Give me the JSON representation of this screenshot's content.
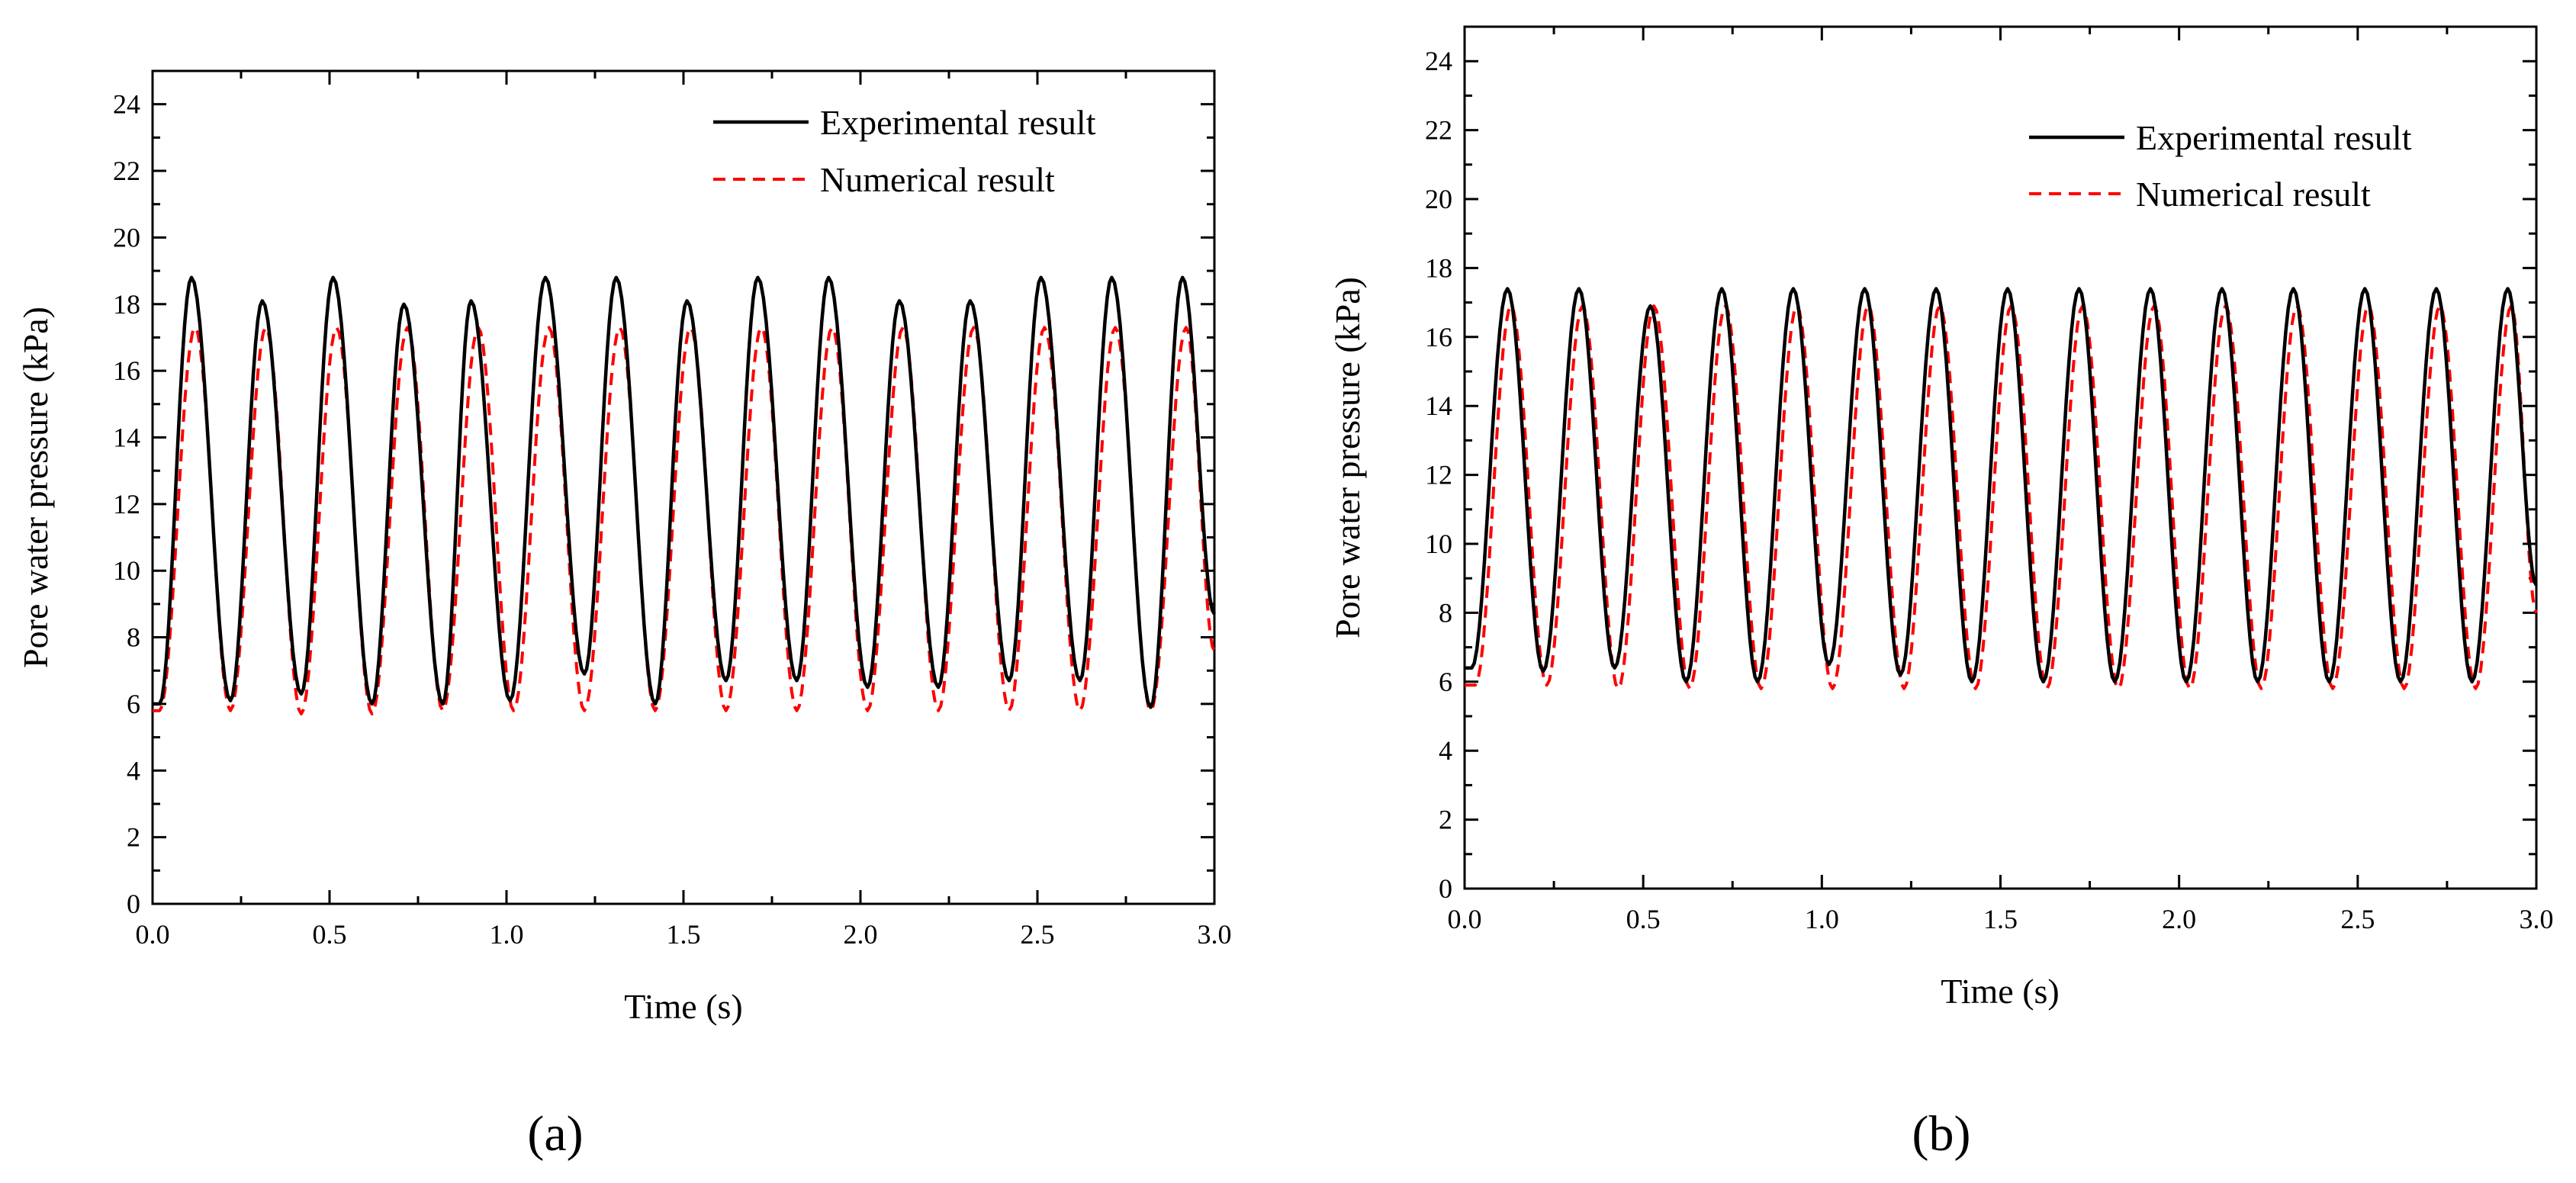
{
  "colors": {
    "experimental": "#000000",
    "numerical": "#ff0000"
  },
  "chart_data": [
    {
      "type": "line",
      "panel": "a",
      "panel_label": "(a)",
      "xlabel": "Time (s)",
      "ylabel": "Pore water pressure (kPa)",
      "xlim": [
        0.0,
        3.0
      ],
      "ylim": [
        0,
        25
      ],
      "xticks": [
        "0.0",
        "0.5",
        "1.0",
        "1.5",
        "2.0",
        "2.5",
        "3.0"
      ],
      "yticks": [
        "0",
        "2",
        "4",
        "6",
        "8",
        "10",
        "12",
        "14",
        "16",
        "18",
        "20",
        "22",
        "24"
      ],
      "legend_position": "top-right",
      "legend": [
        "Experimental result",
        "Numerical result"
      ],
      "series": [
        {
          "name": "Experimental result",
          "style": "solid",
          "peak_times": [
            0.11,
            0.31,
            0.51,
            0.71,
            0.9,
            1.11,
            1.31,
            1.51,
            1.71,
            1.91,
            2.11,
            2.31,
            2.51,
            2.71,
            2.91
          ],
          "peak_values": [
            18.8,
            18.1,
            18.8,
            18.0,
            18.1,
            18.8,
            18.8,
            18.1,
            18.8,
            18.8,
            18.1,
            18.1,
            18.8,
            18.8,
            18.8
          ],
          "trough_times": [
            0.02,
            0.22,
            0.42,
            0.62,
            0.82,
            1.01,
            1.22,
            1.42,
            1.62,
            1.82,
            2.02,
            2.22,
            2.42,
            2.62,
            2.82
          ],
          "trough_values": [
            6.0,
            6.1,
            6.3,
            6.0,
            6.0,
            6.1,
            6.9,
            6.0,
            6.7,
            6.7,
            6.5,
            6.5,
            6.7,
            6.7,
            5.9
          ],
          "end_value": 8.7
        },
        {
          "name": "Numerical result",
          "style": "dashed",
          "peak_times": [
            0.12,
            0.32,
            0.52,
            0.72,
            0.92,
            1.12,
            1.32,
            1.52,
            1.72,
            1.92,
            2.12,
            2.32,
            2.52,
            2.72,
            2.92
          ],
          "peak_values": [
            17.3,
            17.3,
            17.3,
            17.3,
            17.3,
            17.3,
            17.3,
            17.3,
            17.3,
            17.3,
            17.3,
            17.3,
            17.3,
            17.3,
            17.3
          ],
          "trough_times": [
            0.02,
            0.22,
            0.42,
            0.62,
            0.82,
            1.02,
            1.22,
            1.42,
            1.62,
            1.82,
            2.02,
            2.22,
            2.42,
            2.62,
            2.82
          ],
          "trough_values": [
            5.8,
            5.8,
            5.7,
            5.7,
            5.8,
            5.8,
            5.8,
            5.8,
            5.8,
            5.8,
            5.8,
            5.8,
            5.8,
            5.8,
            5.8
          ],
          "end_value": 7.6
        }
      ]
    },
    {
      "type": "line",
      "panel": "b",
      "panel_label": "(b)",
      "xlabel": "Time (s)",
      "ylabel": "Pore water pressure (kPa)",
      "xlim": [
        0.0,
        3.0
      ],
      "ylim": [
        0,
        25
      ],
      "xticks": [
        "0.0",
        "0.5",
        "1.0",
        "1.5",
        "2.0",
        "2.5",
        "3.0"
      ],
      "yticks": [
        "0",
        "2",
        "4",
        "6",
        "8",
        "10",
        "12",
        "14",
        "16",
        "18",
        "20",
        "22",
        "24"
      ],
      "legend_position": "top-right",
      "legend": [
        "Experimental result",
        "Numerical result"
      ],
      "series": [
        {
          "name": "Experimental result",
          "style": "solid",
          "peak_times": [
            0.12,
            0.32,
            0.52,
            0.72,
            0.92,
            1.12,
            1.32,
            1.52,
            1.72,
            1.92,
            2.12,
            2.32,
            2.52,
            2.72,
            2.92
          ],
          "peak_values": [
            17.4,
            17.4,
            16.9,
            17.4,
            17.4,
            17.4,
            17.4,
            17.4,
            17.4,
            17.4,
            17.4,
            17.4,
            17.4,
            17.4,
            17.4
          ],
          "trough_times": [
            0.02,
            0.22,
            0.42,
            0.62,
            0.82,
            1.02,
            1.22,
            1.42,
            1.62,
            1.82,
            2.02,
            2.22,
            2.42,
            2.62,
            2.82
          ],
          "trough_values": [
            6.4,
            6.3,
            6.4,
            6.0,
            6.0,
            6.5,
            6.2,
            6.0,
            6.0,
            6.0,
            6.0,
            6.0,
            6.0,
            6.0,
            6.0
          ],
          "end_value": 8.8
        },
        {
          "name": "Numerical result",
          "style": "dashed",
          "peak_times": [
            0.13,
            0.33,
            0.53,
            0.73,
            0.93,
            1.13,
            1.33,
            1.53,
            1.73,
            1.93,
            2.13,
            2.33,
            2.53,
            2.73,
            2.93
          ],
          "peak_values": [
            16.9,
            16.9,
            16.9,
            16.9,
            16.9,
            16.9,
            16.9,
            16.9,
            16.9,
            16.9,
            16.9,
            16.9,
            16.9,
            16.9,
            16.9
          ],
          "trough_times": [
            0.03,
            0.23,
            0.43,
            0.63,
            0.83,
            1.03,
            1.23,
            1.43,
            1.63,
            1.83,
            2.03,
            2.23,
            2.43,
            2.63,
            2.83
          ],
          "trough_values": [
            5.9,
            5.9,
            5.8,
            5.8,
            5.8,
            5.8,
            5.8,
            5.8,
            5.8,
            5.8,
            5.8,
            5.8,
            5.8,
            5.8,
            5.8
          ],
          "end_value": 8.0
        }
      ]
    }
  ]
}
